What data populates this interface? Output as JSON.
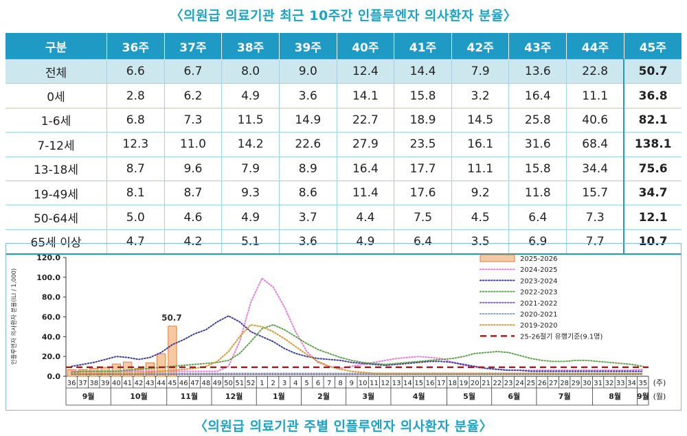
{
  "table_caption": "〈의원급 의료기관 최근 10주간 인플루엔자 의사환자 분율〉",
  "chart_caption": "〈의원급 의료기관 주별 인플루엔자 의사환자 분율〉",
  "table": {
    "headers": [
      "구분",
      "36주",
      "37주",
      "38주",
      "39주",
      "40주",
      "41주",
      "42주",
      "43주",
      "44주",
      "45주"
    ],
    "rows": [
      {
        "label": "전체",
        "values": [
          "6.6",
          "6.7",
          "8.0",
          "9.0",
          "12.4",
          "14.4",
          "7.9",
          "13.6",
          "22.8",
          "50.7"
        ]
      },
      {
        "label": "0세",
        "values": [
          "2.8",
          "6.2",
          "4.9",
          "3.6",
          "14.1",
          "15.8",
          "3.2",
          "16.4",
          "11.1",
          "36.8"
        ]
      },
      {
        "label": "1-6세",
        "values": [
          "6.8",
          "7.3",
          "11.5",
          "14.9",
          "22.7",
          "18.9",
          "14.5",
          "25.8",
          "40.6",
          "82.1"
        ]
      },
      {
        "label": "7-12세",
        "values": [
          "12.3",
          "11.0",
          "14.2",
          "22.6",
          "27.9",
          "23.5",
          "16.1",
          "31.6",
          "68.4",
          "138.1"
        ]
      },
      {
        "label": "13-18세",
        "values": [
          "8.7",
          "9.6",
          "7.9",
          "8.9",
          "16.4",
          "17.7",
          "11.1",
          "15.8",
          "34.4",
          "75.6"
        ]
      },
      {
        "label": "19-49세",
        "values": [
          "8.1",
          "8.7",
          "9.3",
          "8.6",
          "11.4",
          "17.6",
          "9.2",
          "11.8",
          "15.7",
          "34.7"
        ]
      },
      {
        "label": "50-64세",
        "values": [
          "5.0",
          "4.6",
          "4.9",
          "3.7",
          "4.4",
          "7.5",
          "4.5",
          "6.4",
          "7.3",
          "12.1"
        ]
      },
      {
        "label": "65세 이상",
        "values": [
          "4.7",
          "4.2",
          "5.1",
          "3.6",
          "4.9",
          "6.4",
          "3.5",
          "6.9",
          "7.7",
          "10.7"
        ]
      }
    ]
  },
  "chart_data": {
    "type": "bar+line",
    "ylabel": "인플루엔자 의사환자 분율(ILI / 1,000)",
    "ylim": [
      0,
      120
    ],
    "yticks": [
      "120.0",
      "100.0",
      "80.0",
      "60.0",
      "40.0",
      "20.0",
      "0.0"
    ],
    "x_unit_week": "(주)",
    "x_unit_month": "(월)",
    "weeks": [
      "36",
      "37",
      "38",
      "39",
      "40",
      "41",
      "42",
      "43",
      "44",
      "45",
      "46",
      "47",
      "48",
      "49",
      "50",
      "51",
      "52",
      "1",
      "2",
      "3",
      "4",
      "5",
      "6",
      "7",
      "8",
      "9",
      "10",
      "11",
      "12",
      "13",
      "14",
      "15",
      "16",
      "17",
      "18",
      "19",
      "20",
      "21",
      "22",
      "23",
      "24",
      "25",
      "26",
      "27",
      "28",
      "29",
      "30",
      "31",
      "32",
      "33",
      "34",
      "35"
    ],
    "months": [
      {
        "label": "9월",
        "start": 0,
        "end": 3
      },
      {
        "label": "10월",
        "start": 4,
        "end": 8
      },
      {
        "label": "11월",
        "start": 9,
        "end": 12
      },
      {
        "label": "12월",
        "start": 13,
        "end": 16
      },
      {
        "label": "1월",
        "start": 17,
        "end": 20
      },
      {
        "label": "2월",
        "start": 21,
        "end": 24
      },
      {
        "label": "3월",
        "start": 25,
        "end": 28
      },
      {
        "label": "4월",
        "start": 29,
        "end": 33
      },
      {
        "label": "5월",
        "start": 34,
        "end": 37
      },
      {
        "label": "6월",
        "start": 38,
        "end": 41
      },
      {
        "label": "7월",
        "start": 42,
        "end": 46
      },
      {
        "label": "8월",
        "start": 47,
        "end": 50
      },
      {
        "label": "9월",
        "start": 51,
        "end": 51
      }
    ],
    "bar_series": {
      "name": "2025-2026",
      "color": "#f6c9a3",
      "stroke": "#d9813e",
      "values": [
        6.6,
        6.7,
        8.0,
        9.0,
        12.4,
        14.4,
        7.9,
        13.6,
        22.8,
        50.7
      ]
    },
    "bar_label": "50.7",
    "line_series": [
      {
        "name": "2024-2025",
        "color": "#e87fd6",
        "values": [
          5,
          5,
          5,
          5,
          5,
          5,
          5,
          5,
          5,
          5,
          5,
          5,
          5,
          5,
          10,
          35,
          75,
          99,
          90,
          70,
          45,
          25,
          14,
          10,
          8,
          10,
          12,
          14,
          16,
          18,
          19,
          20,
          19,
          18,
          14,
          11,
          9,
          8,
          7,
          6,
          6,
          6,
          6,
          6,
          6,
          6,
          6,
          6,
          6,
          6,
          6,
          7
        ]
      },
      {
        "name": "2023-2024",
        "color": "#3b3b9a",
        "values": [
          10,
          12,
          14,
          17,
          20,
          19,
          17,
          19,
          24,
          32,
          37,
          43,
          47,
          55,
          61,
          55,
          45,
          40,
          35,
          28,
          23,
          20,
          18,
          17,
          16,
          14,
          13,
          12,
          11,
          12,
          13,
          14,
          15,
          15,
          14,
          12,
          10,
          8,
          7,
          6,
          6,
          5,
          5,
          5,
          5,
          5,
          5,
          5,
          5,
          5,
          5,
          5
        ]
      },
      {
        "name": "2022-2023",
        "color": "#5fa04e",
        "values": [
          4,
          5,
          5,
          5,
          5,
          6,
          7,
          8,
          9,
          10,
          11,
          12,
          13,
          14,
          16,
          23,
          35,
          48,
          52,
          47,
          40,
          33,
          27,
          23,
          19,
          16,
          14,
          13,
          12,
          13,
          14,
          15,
          16,
          17,
          18,
          20,
          23,
          24,
          25,
          24,
          21,
          18,
          16,
          15,
          15,
          16,
          16,
          15,
          14,
          13,
          12,
          10
        ]
      },
      {
        "name": "2021-2022",
        "color": "#7a5fa8",
        "values": [
          2,
          2,
          2,
          2,
          2,
          2,
          2,
          2,
          2,
          2,
          2,
          2,
          2,
          2,
          2,
          2,
          2,
          2,
          2,
          2,
          2,
          2,
          2,
          2,
          2,
          2,
          2,
          2,
          2,
          2,
          2,
          2,
          2,
          2,
          2,
          2,
          2,
          2,
          2,
          2,
          2,
          2,
          2,
          2,
          2,
          2,
          2,
          2,
          2,
          2,
          2,
          2
        ]
      },
      {
        "name": "2020-2021",
        "color": "#8aa0b8",
        "values": [
          3,
          3,
          3,
          3,
          3,
          3,
          3,
          3,
          3,
          3,
          3,
          3,
          3,
          3,
          3,
          3,
          3,
          3,
          3,
          3,
          3,
          3,
          3,
          3,
          3,
          3,
          3,
          3,
          3,
          3,
          3,
          3,
          3,
          3,
          3,
          3,
          3,
          3,
          3,
          3,
          3,
          3,
          3,
          3,
          3,
          3,
          3,
          3,
          3,
          3,
          3,
          3
        ]
      },
      {
        "name": "2019-2020",
        "color": "#d49a2e",
        "values": [
          3,
          3,
          3,
          3,
          3,
          3,
          3,
          4,
          5,
          6,
          7,
          8,
          10,
          15,
          25,
          40,
          52,
          50,
          45,
          38,
          30,
          22,
          15,
          10,
          7,
          5,
          4,
          3,
          3,
          3,
          3,
          3,
          3,
          3,
          3,
          3,
          3,
          3,
          3,
          3,
          3,
          3,
          3,
          3,
          3,
          3,
          3,
          3,
          3,
          3,
          3,
          3
        ]
      }
    ],
    "threshold": {
      "name": "25-26절기 유행기준(9.1명)",
      "value": 9.1,
      "color": "#a01e1e"
    }
  }
}
